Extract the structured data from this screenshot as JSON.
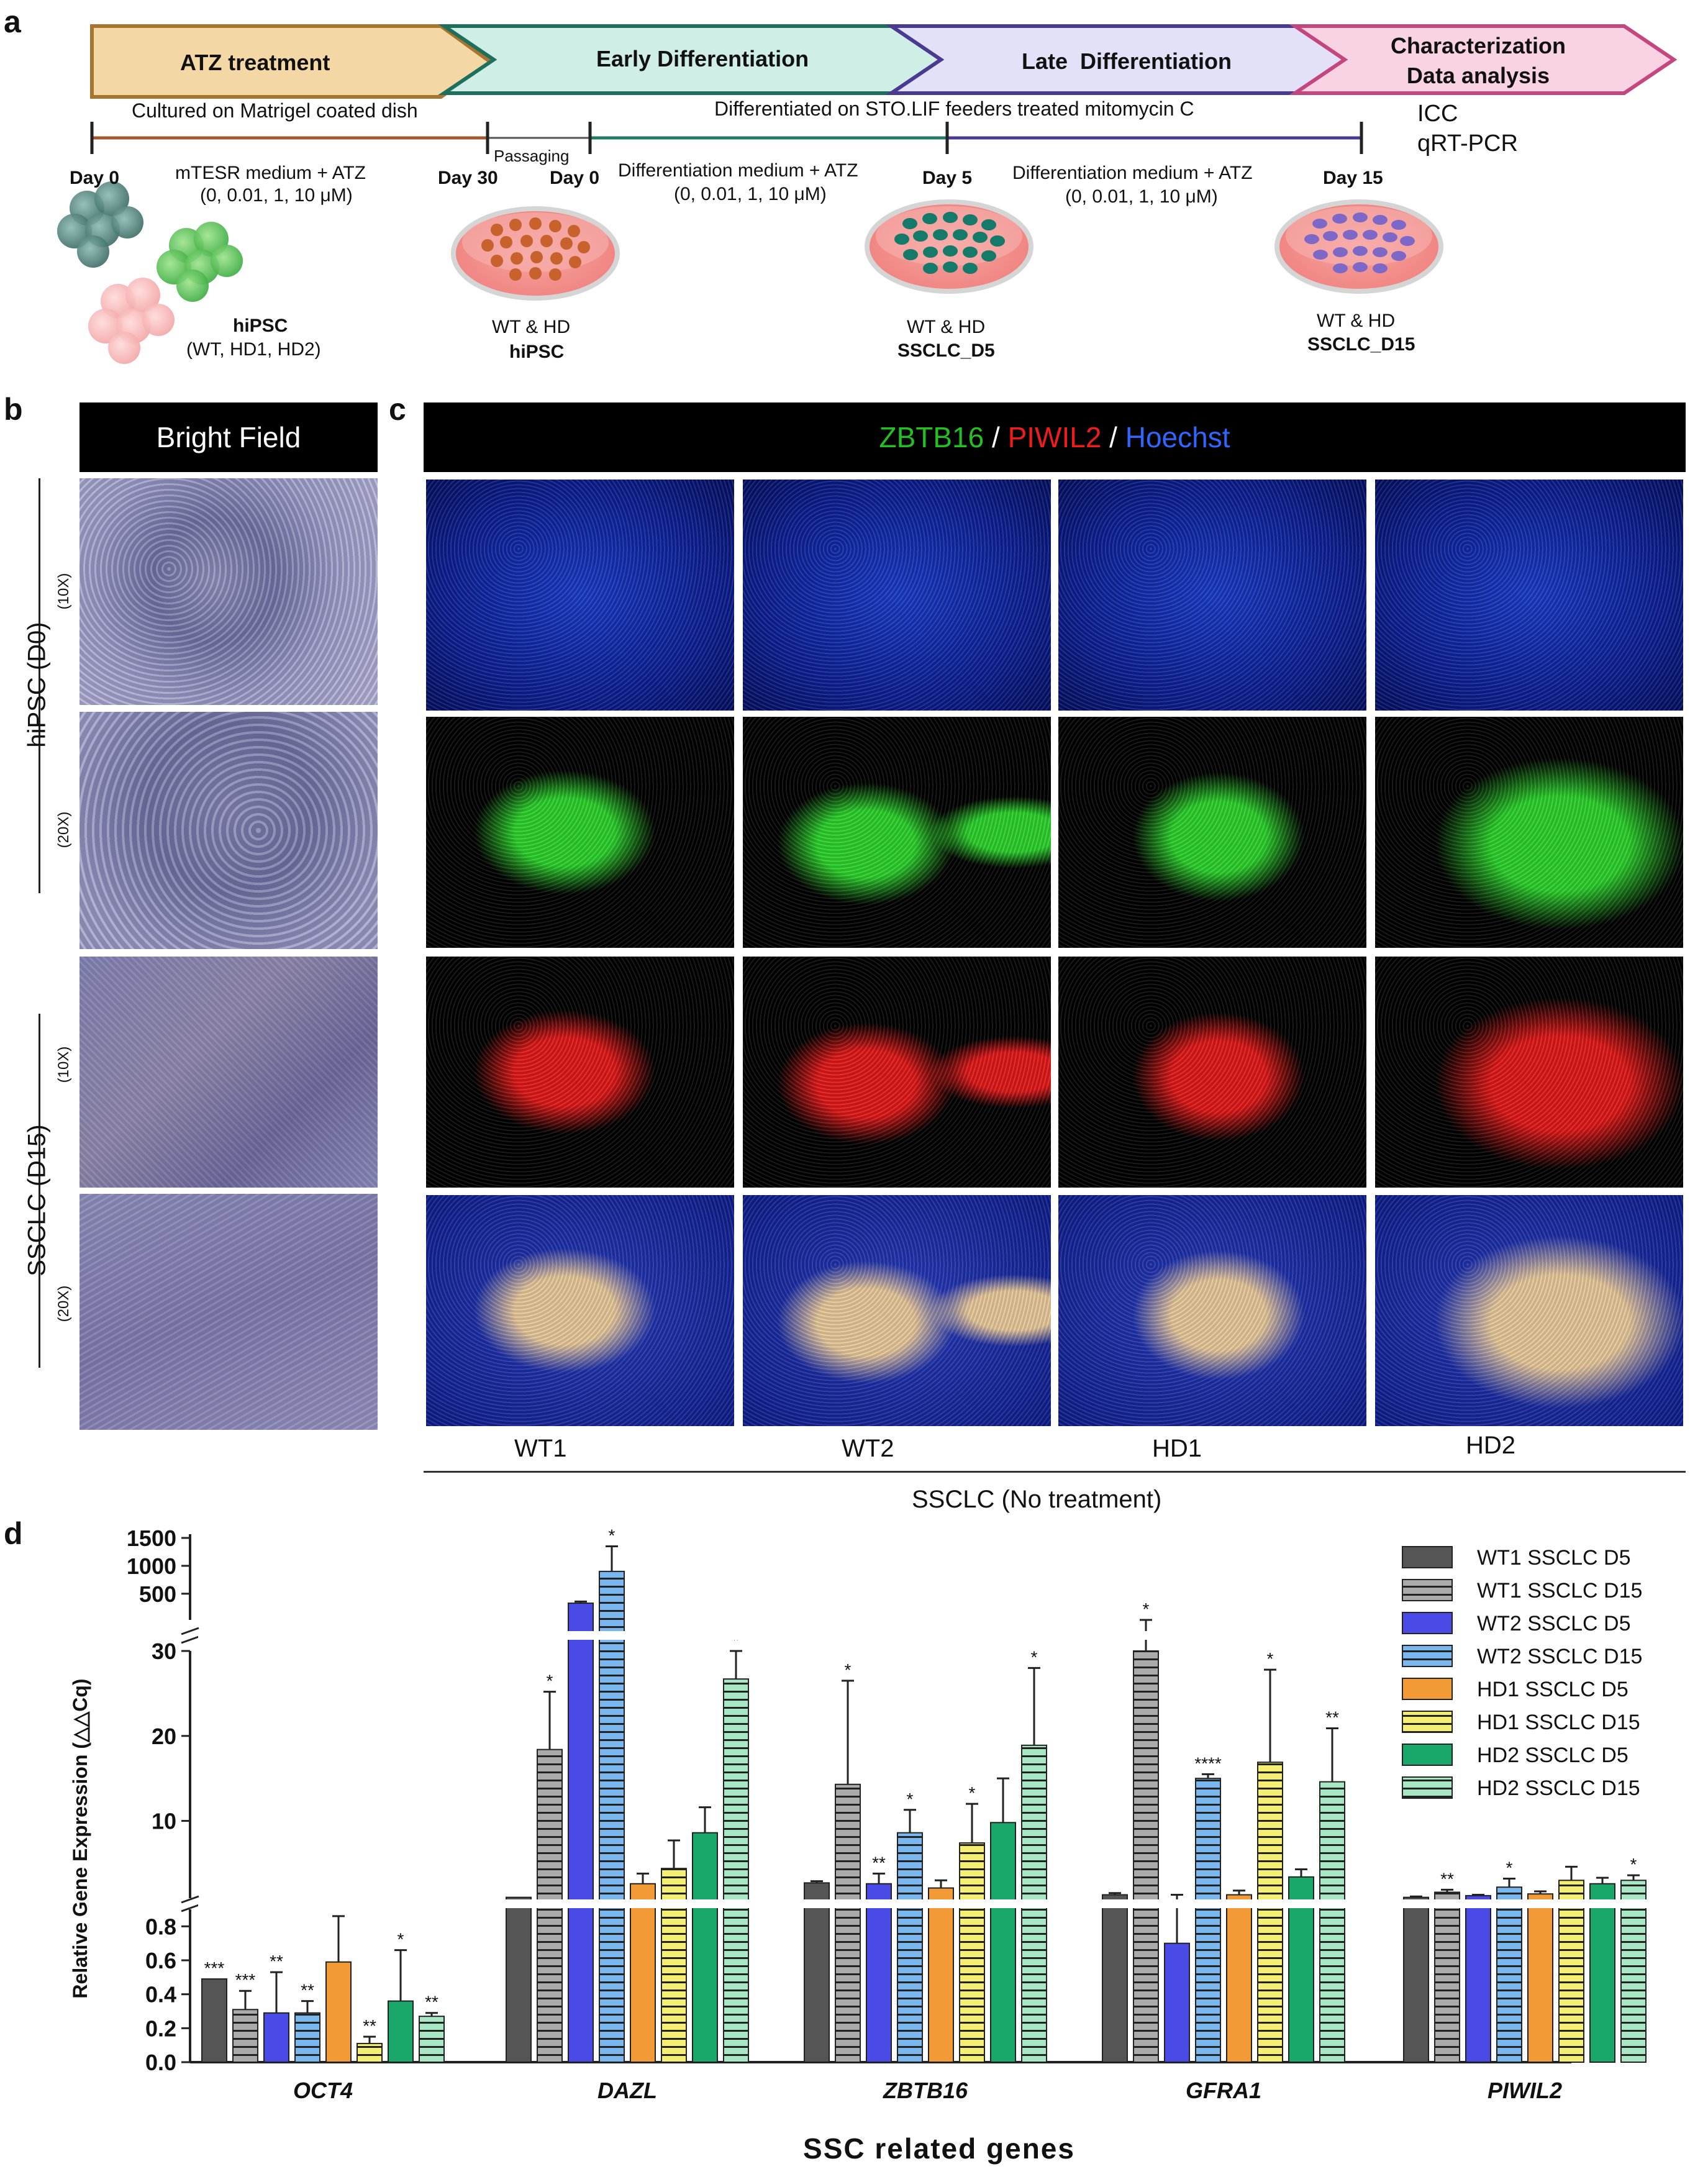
{
  "panels": {
    "a": "a",
    "b": "b",
    "c": "c",
    "d": "d"
  },
  "timeline": {
    "stages": [
      {
        "label": "ATZ treatment",
        "fill": "#f3d7a4",
        "stroke": "#a9752e"
      },
      {
        "label": "Early Differentiation",
        "fill": "#cfeee6",
        "stroke": "#1f6f5d"
      },
      {
        "label": "Late  Differentiation",
        "fill": "#e3e1f8",
        "stroke": "#4b3a92"
      },
      {
        "label": "Characterization\nData analysis",
        "fill": "#f9d3e3",
        "stroke": "#c4467f"
      }
    ],
    "culture_note_1": "Cultured on Matrigel coated dish",
    "culture_note_2": "Differentiated on STO.LIF feeders treated mitomycin C",
    "char_methods": [
      "ICC",
      "qRT-PCR"
    ],
    "passaging": "Passaging",
    "days": [
      "Day 0",
      "Day 30",
      "Day 0",
      "Day 5",
      "Day 15"
    ],
    "media": [
      {
        "line1": "mTESR medium + ATZ",
        "line2": "(0, 0.01, 1, 10 μM)"
      },
      {
        "line1": "Differentiation medium + ATZ",
        "line2": "(0, 0.01, 1, 10 μM)"
      },
      {
        "line1": "Differentiation medium + ATZ",
        "line2": "(0, 0.01, 1, 10 μM)"
      }
    ],
    "cells": [
      {
        "line1": "hiPSC",
        "line2": "(WT, HD1, HD2)"
      },
      {
        "line1": "WT & HD",
        "line2": "hiPSC"
      },
      {
        "line1": "WT & HD",
        "line2": "SSCLC_D5"
      },
      {
        "line1": "WT & HD",
        "line2": "SSCLC_D15"
      }
    ]
  },
  "brightfield": {
    "header": "Bright Field",
    "groups": [
      "hiPSC (D0)",
      "SSCLC (D15)"
    ],
    "mags": [
      "(10X)",
      "(20X)",
      "(10X)",
      "(20X)"
    ]
  },
  "icc": {
    "stain_zbtb16": "ZBTB16",
    "sep1": " / ",
    "stain_piwil2": "PIWIL2",
    "sep2": " / ",
    "stain_hoechst": "Hoechst",
    "stain_colors": {
      "ZBTB16": "#22c022",
      "PIWIL2": "#ee1c1c",
      "Hoechst": "#2f66ff"
    },
    "columns": [
      "WT1",
      "WT2",
      "HD1",
      "HD2"
    ],
    "caption": "SSCLC (No treatment)"
  },
  "chart_data": {
    "type": "bar",
    "ylabel": "Relative Gene Expression (△△Cq)",
    "xlabel": "SSC related genes",
    "categories": [
      "OCT4",
      "DAZL",
      "ZBTB16",
      "GFRA1",
      "PIWIL2"
    ],
    "axis_segments": [
      {
        "range": [
          0,
          0.9
        ],
        "ticks": [
          "0.0",
          "0.2",
          "0.4",
          "0.6",
          "0.8"
        ]
      },
      {
        "range": [
          0.9,
          30
        ],
        "ticks": [
          "10",
          "20",
          "30"
        ]
      },
      {
        "range": [
          30,
          1500
        ],
        "ticks": [
          "500",
          "1000",
          "1500"
        ]
      }
    ],
    "series": [
      {
        "name": "WT1 SSCLC D5",
        "color": "#555555",
        "striped": false,
        "values": [
          0.49,
          1.0,
          2.7,
          1.3,
          1.0
        ],
        "errors": [
          0,
          0,
          0.2,
          0.2,
          0.1
        ],
        "sig": [
          "***",
          "",
          "",
          "",
          ""
        ]
      },
      {
        "name": "WT1 SSCLC D15",
        "color": "#aaaaaa",
        "striped": true,
        "values": [
          0.31,
          18.4,
          14.3,
          30.0,
          1.6
        ],
        "errors": [
          0.11,
          6.8,
          12.2,
          0.5,
          0.3
        ],
        "sig": [
          "***",
          "*",
          "*",
          "*",
          "**"
        ]
      },
      {
        "name": "WT2 SSCLC D5",
        "color": "#4a4ae6",
        "striped": false,
        "values": [
          0.29,
          330,
          2.6,
          0.7,
          1.2
        ],
        "errors": [
          0.24,
          30,
          1.2,
          0.6,
          0.1
        ],
        "sig": [
          "**",
          "",
          "**",
          "",
          ""
        ]
      },
      {
        "name": "WT2 SSCLC D15",
        "color": "#7ab7ee",
        "striped": true,
        "values": [
          0.29,
          900,
          8.6,
          15.0,
          2.2
        ],
        "errors": [
          0.07,
          450,
          2.7,
          0.5,
          1.0
        ],
        "sig": [
          "**",
          "*",
          "*",
          "****",
          "*"
        ]
      },
      {
        "name": "HD1 SSCLC D5",
        "color": "#f29a35",
        "striped": false,
        "values": [
          0.59,
          2.6,
          2.1,
          1.3,
          1.4
        ],
        "errors": [
          0.27,
          1.2,
          0.9,
          0.5,
          0.3
        ],
        "sig": [
          "*",
          "",
          "",
          "",
          ""
        ]
      },
      {
        "name": "HD1 SSCLC D15",
        "color": "#f4ef73",
        "striped": true,
        "values": [
          0.11,
          4.4,
          7.4,
          16.9,
          3.0
        ],
        "errors": [
          0.04,
          3.3,
          4.6,
          10.9,
          1.6
        ],
        "sig": [
          "**",
          "",
          "*",
          "*",
          ""
        ]
      },
      {
        "name": "HD2 SSCLC D5",
        "color": "#1aa86a",
        "striped": false,
        "values": [
          0.36,
          8.6,
          9.8,
          3.4,
          2.6
        ],
        "errors": [
          0.3,
          3.0,
          5.2,
          0.9,
          0.7
        ],
        "sig": [
          "*",
          "",
          "",
          "",
          ""
        ]
      },
      {
        "name": "HD2 SSCLC D15",
        "color": "#a7e7c4",
        "striped": true,
        "values": [
          0.27,
          26.7,
          18.9,
          14.6,
          3.0
        ],
        "errors": [
          0.02,
          3.3,
          9.1,
          6.3,
          0.6
        ],
        "sig": [
          "**",
          "*",
          "*",
          "**",
          "*"
        ]
      }
    ]
  }
}
